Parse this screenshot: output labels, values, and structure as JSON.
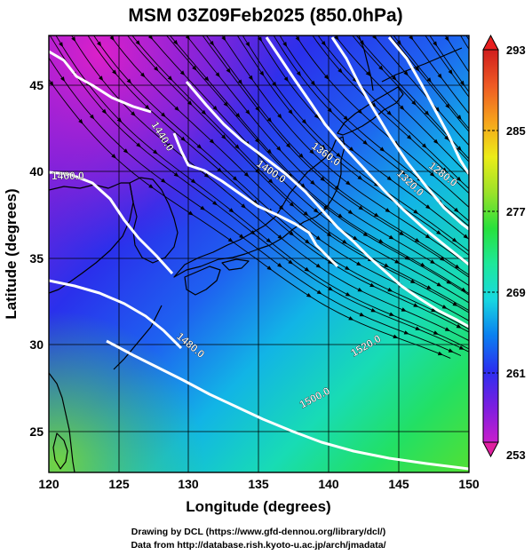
{
  "title": "MSM 03Z09Feb2025 (850.0hPa)",
  "xaxis": {
    "label": "Longitude (degrees)",
    "range": [
      120,
      150
    ],
    "ticks": [
      120,
      125,
      130,
      135,
      140,
      145,
      150
    ]
  },
  "yaxis": {
    "label": "Latitude  (degrees)",
    "range": [
      22.4,
      47.6
    ],
    "ticks": [
      25,
      30,
      35,
      40,
      45
    ]
  },
  "colorbar": {
    "min": 253,
    "max": 293,
    "tick_labels": [
      "293",
      "285",
      "277",
      "269",
      "261",
      "253"
    ],
    "colors": [
      "#c81ecc",
      "#7a1ee0",
      "#2b2ff0",
      "#0a80f0",
      "#18d8e0",
      "#1ee89a",
      "#28e03c",
      "#9be22a",
      "#ecec18",
      "#f6a21c",
      "#ee5a24",
      "#d01d1d"
    ]
  },
  "contours": [
    {
      "label": "1440.0"
    },
    {
      "label": "1400.0"
    },
    {
      "label": "1360.0"
    },
    {
      "label": "1320.0"
    },
    {
      "label": "1280.0"
    },
    {
      "label": "1460.0"
    },
    {
      "label": "1480.0"
    },
    {
      "label": "1520.0"
    },
    {
      "label": "1500.0"
    }
  ],
  "credits": {
    "line1": "Drawing by DCL (https://www.gfd-dennou.org/library/dcl/)",
    "line2": "Data from http://database.rish.kyoto-u.ac.jp/arch/jmadata/"
  },
  "colors": {
    "contour": "#ffffff",
    "grid": "#000000",
    "coast": "#000000"
  }
}
